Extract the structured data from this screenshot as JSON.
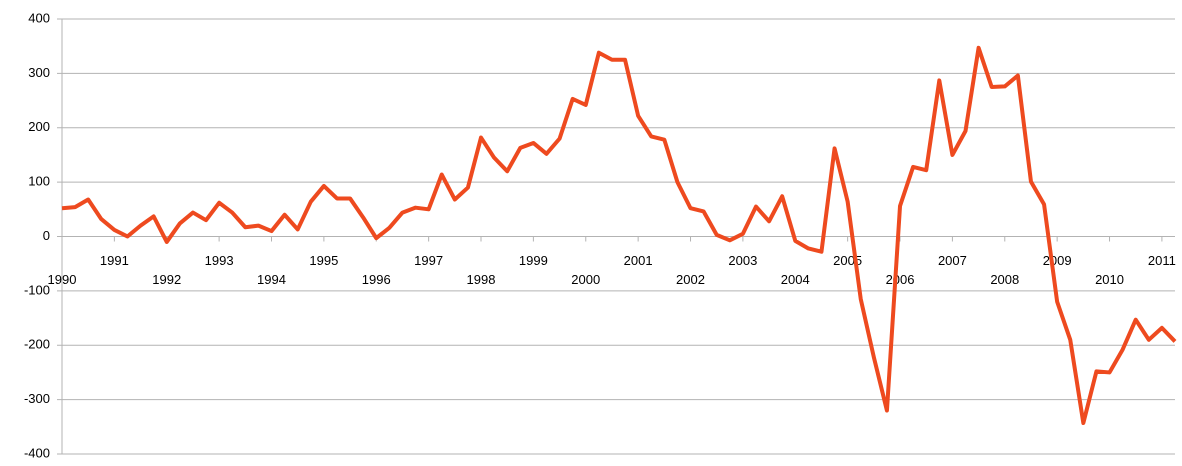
{
  "chart_data": {
    "type": "line",
    "categories": [
      "1990",
      null,
      null,
      null,
      "1991",
      null,
      null,
      null,
      "1992",
      null,
      null,
      null,
      "1993",
      null,
      null,
      null,
      "1994",
      null,
      null,
      null,
      "1995",
      null,
      null,
      null,
      "1996",
      null,
      null,
      null,
      "1997",
      null,
      null,
      null,
      "1998",
      null,
      null,
      null,
      "1999",
      null,
      null,
      null,
      "2000",
      null,
      null,
      null,
      "2001",
      null,
      null,
      null,
      "2002",
      null,
      null,
      null,
      "2003",
      null,
      null,
      null,
      "2004",
      null,
      null,
      null,
      "2005",
      null,
      null,
      null,
      "2006",
      null,
      null,
      null,
      "2007",
      null,
      null,
      null,
      "2008",
      null,
      null,
      null,
      "2009",
      null,
      null,
      null,
      "2010",
      null,
      null,
      null,
      "2011",
      null
    ],
    "values": [
      52,
      54,
      68,
      32,
      12,
      0,
      20,
      37,
      -10,
      24,
      44,
      30,
      62,
      44,
      17,
      20,
      10,
      40,
      13,
      64,
      93,
      70,
      70,
      35,
      -3,
      16,
      44,
      53,
      50,
      114,
      68,
      90,
      182,
      145,
      120,
      163,
      172,
      152,
      180,
      253,
      242,
      338,
      325,
      325,
      222,
      184,
      178,
      100,
      52,
      46,
      3,
      -7,
      5,
      55,
      28,
      74,
      -8,
      -22,
      -28,
      162,
      64,
      -115,
      -222,
      -320,
      56,
      128,
      122,
      287,
      150,
      194,
      347,
      275,
      276,
      296,
      101,
      59,
      -120,
      -190,
      -343,
      -248,
      -250,
      -208,
      -153,
      -190,
      -168,
      -193
    ],
    "color": "#ee4a1f",
    "ylim": [
      -400,
      400
    ],
    "yticks": [
      -400,
      -300,
      -200,
      -100,
      0,
      100,
      200,
      300,
      400
    ],
    "grid": true
  }
}
